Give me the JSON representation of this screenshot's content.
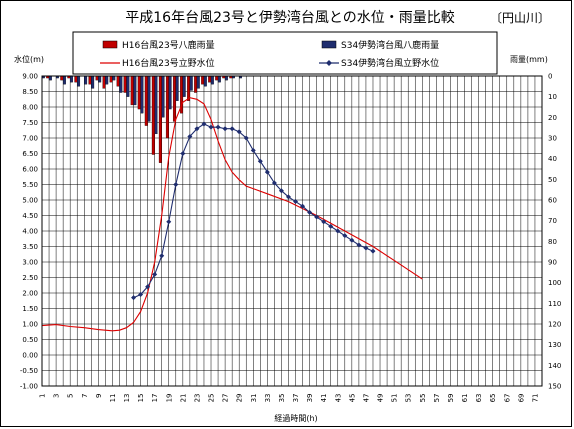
{
  "chart_data": {
    "type": "bar+line",
    "title": "平成16年台風23号と伊勢湾台風との水位・雨量比較",
    "river_tag": "〔円山川〕",
    "xlabel": "経過時間(h)",
    "ylabel_left": "水位(m)",
    "ylabel_right": "雨量(mm)",
    "x_ticks": [
      "1",
      "3",
      "5",
      "7",
      "9",
      "11",
      "13",
      "15",
      "17",
      "19",
      "21",
      "23",
      "25",
      "27",
      "29",
      "31",
      "33",
      "35",
      "37",
      "39",
      "41",
      "43",
      "45",
      "47",
      "49",
      "51",
      "53",
      "55",
      "57",
      "59",
      "61",
      "63",
      "65",
      "67",
      "69",
      "71"
    ],
    "xlim": [
      1,
      72
    ],
    "ylim_left": [
      -1.0,
      9.0
    ],
    "ylim_right": [
      0,
      150
    ],
    "y_ticks_left": [
      "9.00",
      "8.50",
      "8.00",
      "7.50",
      "7.00",
      "6.50",
      "6.00",
      "5.50",
      "5.00",
      "4.50",
      "4.00",
      "3.50",
      "3.00",
      "2.50",
      "2.00",
      "1.50",
      "1.00",
      "0.50",
      "0.00",
      "-0.50",
      "-1.00"
    ],
    "y_ticks_right": [
      "0",
      "10",
      "20",
      "30",
      "40",
      "50",
      "60",
      "70",
      "80",
      "90",
      "100",
      "110",
      "120",
      "130",
      "140",
      "150"
    ],
    "grid": true,
    "legend_position": "top",
    "series": [
      {
        "name": "H16台風23号八鹿雨量",
        "kind": "bar",
        "axis": "right",
        "color": "#c00000",
        "x": [
          1,
          2,
          3,
          4,
          5,
          6,
          7,
          8,
          9,
          10,
          11,
          12,
          13,
          14,
          15,
          16,
          17,
          18,
          19,
          20,
          21,
          22,
          23,
          24,
          25,
          26,
          27,
          28,
          29,
          30
        ],
        "values": [
          0,
          1,
          0,
          2,
          1,
          3,
          0,
          4,
          2,
          6,
          3,
          5,
          8,
          14,
          16,
          24,
          38,
          42,
          30,
          22,
          18,
          12,
          8,
          4,
          3,
          2,
          1,
          1,
          0,
          0
        ]
      },
      {
        "name": "S34伊勢湾台風八鹿雨量",
        "kind": "bar",
        "axis": "right",
        "color": "#1f2d6e",
        "x": [
          1,
          2,
          3,
          4,
          5,
          6,
          7,
          8,
          9,
          10,
          11,
          12,
          13,
          14,
          15,
          16,
          17,
          18,
          19,
          20,
          21,
          22,
          23,
          24,
          25,
          26,
          27,
          28,
          29,
          30
        ],
        "values": [
          1,
          2,
          1,
          4,
          3,
          5,
          4,
          6,
          3,
          4,
          2,
          8,
          10,
          14,
          18,
          22,
          28,
          20,
          16,
          12,
          10,
          7,
          6,
          5,
          4,
          3,
          2,
          1,
          1,
          0
        ]
      },
      {
        "name": "H16台風23号立野水位",
        "kind": "line",
        "axis": "left",
        "color": "#dd0000",
        "x": [
          1,
          3,
          5,
          7,
          9,
          11,
          12,
          13,
          14,
          15,
          16,
          17,
          18,
          19,
          20,
          21,
          22,
          23,
          24,
          25,
          26,
          27,
          28,
          29,
          30,
          33,
          36,
          40,
          44,
          48,
          52,
          55
        ],
        "values": [
          0.95,
          0.98,
          0.92,
          0.88,
          0.82,
          0.78,
          0.8,
          0.88,
          1.05,
          1.4,
          2.0,
          3.0,
          4.5,
          6.4,
          7.6,
          8.15,
          8.3,
          8.25,
          8.1,
          7.6,
          6.9,
          6.3,
          5.9,
          5.65,
          5.45,
          5.2,
          4.95,
          4.5,
          4.0,
          3.5,
          2.9,
          2.45
        ]
      },
      {
        "name": "S34伊勢湾台風立野水位",
        "kind": "line+marker",
        "axis": "left",
        "color": "#1f2d6e",
        "x": [
          14,
          15,
          16,
          17,
          18,
          19,
          20,
          21,
          22,
          23,
          24,
          25,
          26,
          27,
          28,
          29,
          30,
          31,
          32,
          33,
          34,
          35,
          36,
          37,
          38,
          39,
          40,
          41,
          42,
          43,
          44,
          45,
          46,
          47,
          48
        ],
        "values": [
          1.85,
          1.95,
          2.2,
          2.6,
          3.2,
          4.3,
          5.5,
          6.5,
          7.05,
          7.3,
          7.45,
          7.35,
          7.35,
          7.3,
          7.3,
          7.2,
          7.0,
          6.6,
          6.25,
          5.9,
          5.55,
          5.3,
          5.1,
          4.95,
          4.8,
          4.6,
          4.45,
          4.3,
          4.15,
          4.0,
          3.85,
          3.7,
          3.55,
          3.45,
          3.35
        ]
      }
    ]
  },
  "palette": {
    "plot_bg": "#ffffff",
    "grid": "#000000",
    "border": "#000000"
  }
}
